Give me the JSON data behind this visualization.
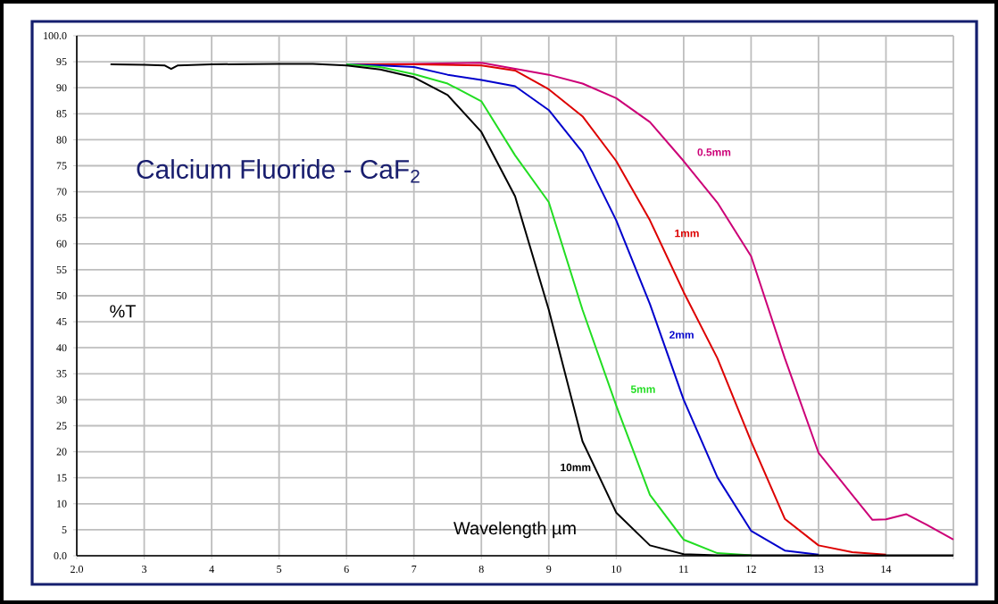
{
  "chart_data": {
    "type": "line",
    "title": "Calcium Fluoride - CaF$_{2}$",
    "xlabel": "Wavelength µm",
    "ylabel": "%T",
    "xlim": [
      2,
      15
    ],
    "ylim": [
      0,
      100
    ],
    "xticks": [
      {
        "value": 2,
        "label": "2.0"
      },
      3,
      4,
      5,
      6,
      7,
      8,
      9,
      10,
      11,
      12,
      13,
      14,
      {
        "value": 15,
        "label": null
      }
    ],
    "yticks": [
      {
        "value": 0,
        "label": "0.0"
      },
      5,
      10,
      15,
      20,
      25,
      30,
      35,
      40,
      45,
      50,
      55,
      60,
      65,
      70,
      75,
      80,
      85,
      90,
      95,
      {
        "value": 100,
        "label": "100.0"
      }
    ],
    "grid": true,
    "marker": "none",
    "line_style": "solid",
    "series": [
      {
        "color": "#cc0077",
        "x": [
          6,
          7,
          8,
          9,
          9.5,
          10,
          10.5,
          11,
          11.5,
          12,
          12.5,
          13,
          13.5,
          13.8,
          14,
          14.3,
          14.6,
          15
        ],
        "values": [
          94.5,
          94.6,
          94.8,
          92.5,
          90.8,
          88,
          83.4,
          75.9,
          67.9,
          57.6,
          38,
          19.8,
          11.7,
          6.9,
          7,
          8,
          6,
          3.1
        ]
      },
      {
        "color": "#dd0000",
        "x": [
          6,
          7,
          8,
          8.5,
          9,
          9.5,
          10,
          10.5,
          11,
          11.5,
          12,
          12.5,
          13,
          13.5,
          14
        ],
        "values": [
          94.5,
          94.5,
          94.3,
          93.3,
          89.7,
          84.5,
          75.9,
          64.5,
          50.7,
          38,
          22,
          7.1,
          2,
          0.7,
          0.2
        ]
      },
      {
        "color": "#0000cc",
        "x": [
          6,
          6.5,
          7,
          7.5,
          8,
          8.5,
          9,
          9.5,
          10,
          10.5,
          11,
          11.5,
          12,
          12.5,
          13
        ],
        "values": [
          94.5,
          94.3,
          94,
          92.5,
          91.5,
          90.3,
          85.7,
          77.6,
          64.5,
          48.4,
          30,
          15.1,
          4.8,
          1,
          0.2
        ]
      },
      {
        "color": "#22dd22",
        "x": [
          6,
          6.5,
          7,
          7.5,
          8,
          8.5,
          9,
          9.5,
          10,
          10.5,
          11,
          11.5,
          12
        ],
        "values": [
          94.5,
          94,
          92.6,
          90.8,
          87.4,
          77,
          68,
          47.3,
          28.9,
          11.7,
          3.1,
          0.5,
          0.1
        ]
      },
      {
        "color": "#000000",
        "x": [
          2.5,
          3,
          3.3,
          3.4,
          3.5,
          4,
          5,
          5.5,
          6,
          6.5,
          7,
          7.5,
          8,
          8.5,
          9,
          9.5,
          10,
          10.5,
          11,
          11.5,
          12,
          13,
          14,
          15
        ],
        "values": [
          94.5,
          94.4,
          94.3,
          93.6,
          94.3,
          94.5,
          94.6,
          94.6,
          94.3,
          93.5,
          92,
          88.6,
          81.5,
          69.1,
          47.3,
          22,
          8.3,
          2,
          0.3,
          0.1,
          0.1,
          0.1,
          0.1,
          0.1
        ]
      }
    ],
    "annotations": [
      "0.5mm",
      "1mm",
      "2mm",
      "5mm",
      "10mm"
    ]
  }
}
